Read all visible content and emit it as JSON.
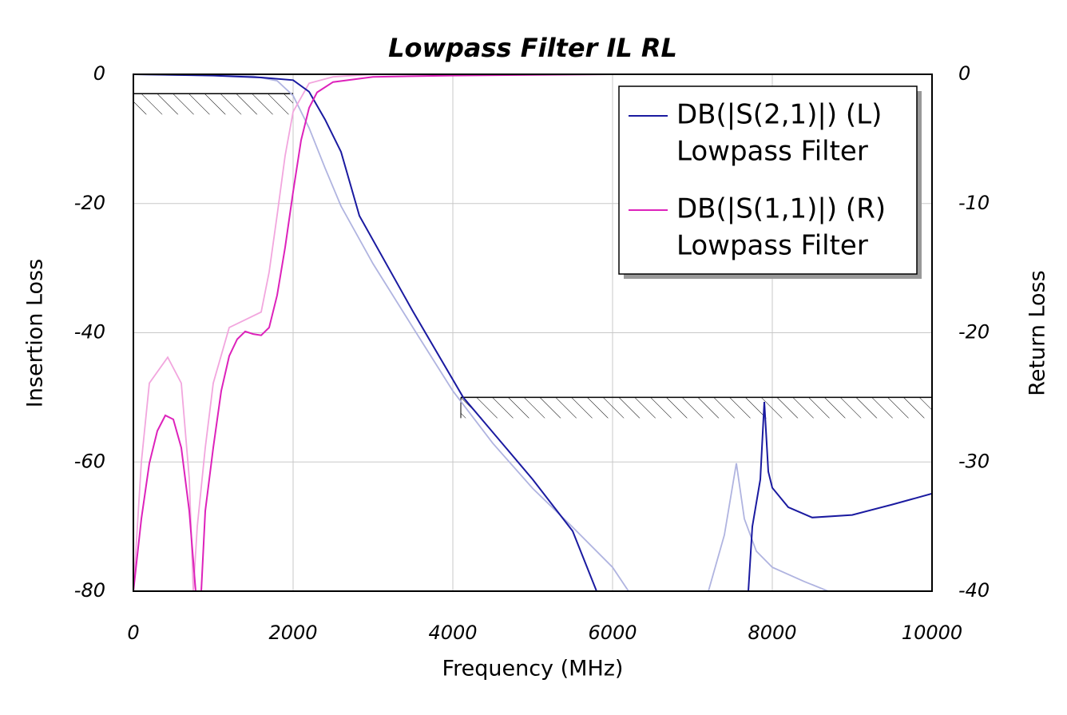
{
  "chart_data": {
    "type": "line",
    "title": "Lowpass Filter IL RL",
    "xlabel": "Frequency (MHz)",
    "ylabel": "Insertion Loss",
    "y2label": "Return Loss",
    "xlim": [
      0,
      10000
    ],
    "xticks": [
      0,
      2000,
      4000,
      6000,
      8000,
      10000
    ],
    "ylim": [
      -80,
      0
    ],
    "yticks": [
      -80,
      -60,
      -40,
      -20,
      0
    ],
    "y2lim": [
      -40,
      0
    ],
    "y2ticks": [
      -40,
      -30,
      -20,
      -10,
      0
    ],
    "grid": true,
    "legend": "upper right",
    "series": [
      {
        "color": "#b0b4e0",
        "axis": "y",
        "x": [
          0,
          1500,
          1800,
          2000,
          2200,
          2400,
          2600,
          3000,
          3500,
          4000,
          4500,
          5000,
          5500,
          6000,
          6200,
          null,
          7200,
          7400,
          7550,
          7650,
          7800,
          8000,
          8400,
          8700
        ],
        "values": [
          0,
          -0.3,
          -1,
          -3.3,
          -8.3,
          -14.5,
          -20.4,
          -29.3,
          -39.2,
          -49,
          -57.1,
          -64.1,
          -70.1,
          -76.3,
          -80,
          null,
          -80,
          -71.3,
          -60.2,
          -68.8,
          -73.8,
          -76.3,
          -78.5,
          -80
        ]
      },
      {
        "color": "#f2a6de",
        "axis": "y2",
        "x": [
          0,
          100,
          200,
          430,
          600,
          700,
          750,
          800,
          900,
          1000,
          1200,
          1400,
          1600,
          1700,
          1800,
          1900,
          2000,
          2200,
          2500,
          3000,
          10000
        ],
        "values": [
          -40,
          -30,
          -23.9,
          -21.9,
          -23.9,
          -31.3,
          -40,
          -35,
          -28.9,
          -23.9,
          -19.6,
          -19,
          -18.4,
          -15.3,
          -10.9,
          -6.3,
          -2.9,
          -0.7,
          -0.2,
          0,
          0
        ]
      },
      {
        "name": "DB(|S(2,1)|) (L)",
        "source": "Lowpass Filter",
        "color": "#1a1aa0",
        "axis": "y",
        "x": [
          0,
          1000,
          1600,
          2000,
          2200,
          2400,
          2600,
          2830,
          3500,
          4130,
          5000,
          5500,
          5800,
          null,
          7700,
          7750,
          7850,
          7900,
          7950,
          8000,
          8200,
          8500,
          9000,
          9500,
          10000
        ],
        "values": [
          0,
          -0.2,
          -0.5,
          -0.9,
          -2.7,
          -7,
          -12,
          -21.9,
          -36.7,
          -50,
          -62.7,
          -70.7,
          -80,
          null,
          -80,
          -70,
          -62.7,
          -50.7,
          -61.5,
          -64,
          -67,
          -68.6,
          -68.2,
          -66.6,
          -64.9
        ]
      },
      {
        "name": "DB(|S(1,1)|) (R)",
        "source": "Lowpass Filter",
        "color": "#dd22bb",
        "axis": "y2",
        "x": [
          0,
          100,
          200,
          300,
          400,
          500,
          600,
          700,
          780,
          850,
          900,
          1000,
          1100,
          1200,
          1300,
          1400,
          1500,
          1600,
          1700,
          1800,
          1900,
          2000,
          2100,
          2200,
          2300,
          2500,
          3000,
          4000,
          6000,
          10000
        ],
        "values": [
          -40,
          -34.4,
          -30.1,
          -27.6,
          -26.4,
          -26.7,
          -28.9,
          -33.8,
          -40,
          -40,
          -33.8,
          -28.9,
          -24.5,
          -21.8,
          -20.5,
          -19.9,
          -20.1,
          -20.2,
          -19.6,
          -17.1,
          -13.4,
          -9.1,
          -5.1,
          -2.6,
          -1.4,
          -0.6,
          -0.2,
          -0.1,
          0,
          0
        ]
      }
    ],
    "limits": [
      {
        "x": [
          0,
          2000
        ],
        "value": -3
      },
      {
        "x": [
          4100,
          10000
        ],
        "value": -50
      }
    ]
  }
}
